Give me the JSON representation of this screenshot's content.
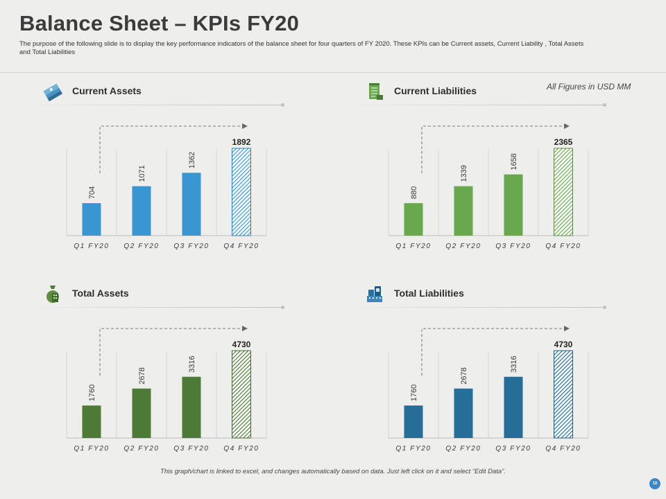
{
  "page": {
    "title": "Balance Sheet – KPIs FY20",
    "subtitle": "The purpose of the following slide is to display the key performance indicators of the balance sheet for four quarters of FY 2020. These KPIs  can be Current assets, Current Liability , Total Assets and Total Liabilities",
    "unit_note": "All Figures  in USD MM",
    "footer_note": "This graph/chart is linked to excel, and changes automatically based on data. Just left click on it and select “Edit Data”.",
    "page_number": "10"
  },
  "panels": [
    {
      "title": "Current Assets",
      "icon": "money-stack-icon"
    },
    {
      "title": "Current Liabilities",
      "icon": "document-icon"
    },
    {
      "title": "Total Assets",
      "icon": "money-bag-icon"
    },
    {
      "title": "Total Liabilities",
      "icon": "finance-buildings-icon"
    }
  ],
  "colors": {
    "current_assets": "#3a96d0",
    "current_liabilities": "#6aa84f",
    "total_assets": "#4d7a37",
    "total_liabilities": "#266e98"
  },
  "chart_data": [
    {
      "type": "bar",
      "title": "Current Assets",
      "categories": [
        "Q1 FY20",
        "Q2 FY20",
        "Q3 FY20",
        "Q4 FY20"
      ],
      "values": [
        704,
        1071,
        1362,
        1892
      ],
      "ylim": [
        0,
        2000
      ],
      "highlight_index": 3,
      "color": "#3a96d0",
      "xlabel": "",
      "ylabel": ""
    },
    {
      "type": "bar",
      "title": "Current Liabilities",
      "categories": [
        "Q1 FY20",
        "Q2 FY20",
        "Q3 FY20",
        "Q4 FY20"
      ],
      "values": [
        880,
        1339,
        1658,
        2365
      ],
      "ylim": [
        0,
        2500
      ],
      "highlight_index": 3,
      "color": "#6aa84f",
      "xlabel": "",
      "ylabel": ""
    },
    {
      "type": "bar",
      "title": "Total Assets",
      "categories": [
        "Q1 FY20",
        "Q2 FY20",
        "Q3 FY20",
        "Q4 FY20"
      ],
      "values": [
        1760,
        2678,
        3316,
        4730
      ],
      "ylim": [
        0,
        5000
      ],
      "highlight_index": 3,
      "color": "#4d7a37",
      "xlabel": "",
      "ylabel": ""
    },
    {
      "type": "bar",
      "title": "Total Liabilities",
      "categories": [
        "Q1 FY20",
        "Q2 FY20",
        "Q3 FY20",
        "Q4 FY20"
      ],
      "values": [
        1760,
        2678,
        3316,
        4730
      ],
      "ylim": [
        0,
        5000
      ],
      "highlight_index": 3,
      "color": "#266e98",
      "xlabel": "",
      "ylabel": ""
    }
  ]
}
